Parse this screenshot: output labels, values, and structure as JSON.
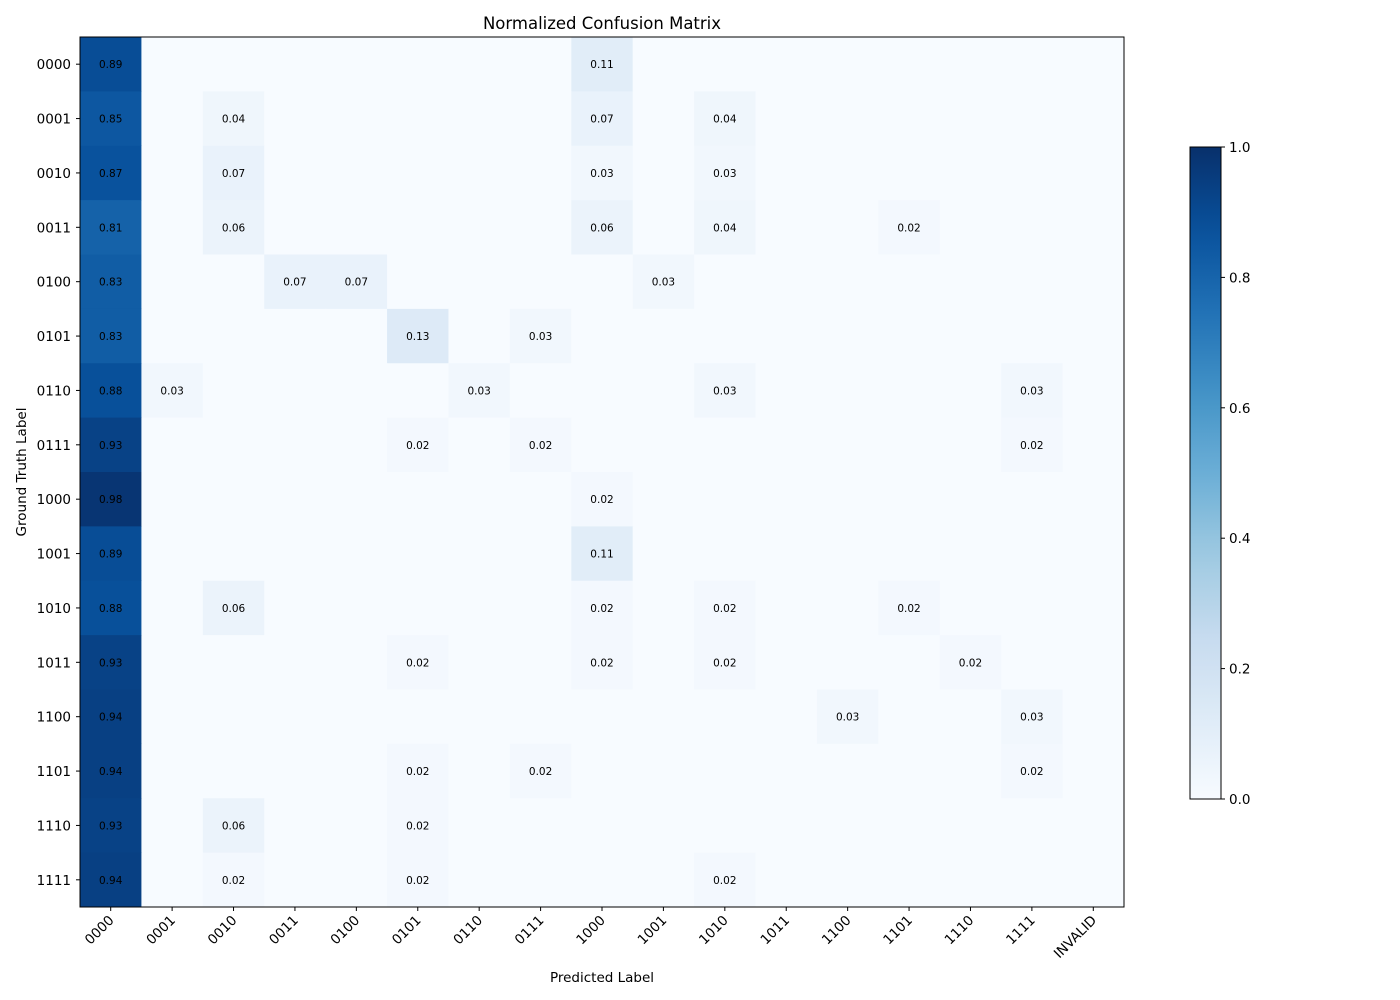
{
  "chart_data": {
    "type": "heatmap",
    "title": "Normalized Confusion Matrix",
    "xlabel": "Predicted Label",
    "ylabel": "Ground Truth Label",
    "x_categories": [
      "0000",
      "0001",
      "0010",
      "0011",
      "0100",
      "0101",
      "0110",
      "0111",
      "1000",
      "1001",
      "1010",
      "1011",
      "1100",
      "1101",
      "1110",
      "1111",
      "INVALID"
    ],
    "y_categories": [
      "0000",
      "0001",
      "0010",
      "0011",
      "0100",
      "0101",
      "0110",
      "0111",
      "1000",
      "1001",
      "1010",
      "1011",
      "1100",
      "1101",
      "1110",
      "1111"
    ],
    "values": [
      [
        0.89,
        0,
        0,
        0,
        0,
        0,
        0,
        0,
        0.11,
        0,
        0,
        0,
        0,
        0,
        0,
        0,
        0
      ],
      [
        0.85,
        0,
        0.04,
        0,
        0,
        0,
        0,
        0,
        0.07,
        0,
        0.04,
        0,
        0,
        0,
        0,
        0,
        0
      ],
      [
        0.87,
        0,
        0.07,
        0,
        0,
        0,
        0,
        0,
        0.03,
        0,
        0.03,
        0,
        0,
        0,
        0,
        0,
        0
      ],
      [
        0.81,
        0,
        0.06,
        0,
        0,
        0,
        0,
        0,
        0.06,
        0,
        0.04,
        0,
        0,
        0.02,
        0,
        0,
        0
      ],
      [
        0.83,
        0,
        0,
        0.07,
        0.07,
        0,
        0,
        0,
        0,
        0.03,
        0,
        0,
        0,
        0,
        0,
        0,
        0
      ],
      [
        0.83,
        0,
        0,
        0,
        0,
        0.13,
        0,
        0.03,
        0,
        0,
        0,
        0,
        0,
        0,
        0,
        0,
        0
      ],
      [
        0.88,
        0.03,
        0,
        0,
        0,
        0,
        0.03,
        0,
        0,
        0,
        0.03,
        0,
        0,
        0,
        0,
        0.03,
        0
      ],
      [
        0.93,
        0,
        0,
        0,
        0,
        0.02,
        0,
        0.02,
        0,
        0,
        0,
        0,
        0,
        0,
        0,
        0.02,
        0
      ],
      [
        0.98,
        0,
        0,
        0,
        0,
        0,
        0,
        0,
        0.02,
        0,
        0,
        0,
        0,
        0,
        0,
        0,
        0
      ],
      [
        0.89,
        0,
        0,
        0,
        0,
        0,
        0,
        0,
        0.11,
        0,
        0,
        0,
        0,
        0,
        0,
        0,
        0
      ],
      [
        0.88,
        0,
        0.06,
        0,
        0,
        0,
        0,
        0,
        0.02,
        0,
        0.02,
        0,
        0,
        0.02,
        0,
        0,
        0
      ],
      [
        0.93,
        0,
        0,
        0,
        0,
        0.02,
        0,
        0,
        0.02,
        0,
        0.02,
        0,
        0,
        0,
        0.02,
        0,
        0
      ],
      [
        0.94,
        0,
        0,
        0,
        0,
        0,
        0,
        0,
        0,
        0,
        0,
        0,
        0.03,
        0,
        0,
        0.03,
        0
      ],
      [
        0.94,
        0,
        0,
        0,
        0,
        0.02,
        0,
        0.02,
        0,
        0,
        0,
        0,
        0,
        0,
        0,
        0.02,
        0
      ],
      [
        0.93,
        0,
        0.06,
        0,
        0,
        0.02,
        0,
        0,
        0,
        0,
        0,
        0,
        0,
        0,
        0,
        0,
        0
      ],
      [
        0.94,
        0,
        0.02,
        0,
        0,
        0.02,
        0,
        0,
        0,
        0,
        0.02,
        0,
        0,
        0,
        0,
        0,
        0
      ]
    ],
    "value_range": [
      0.0,
      1.0
    ],
    "colormap": "Blues",
    "colorbar": {
      "ticks": [
        0.0,
        0.2,
        0.4,
        0.6,
        0.8,
        1.0
      ],
      "tick_labels": [
        "0.0",
        "0.2",
        "0.4",
        "0.6",
        "0.8",
        "1.0"
      ]
    },
    "cell_labels": "shown when value > 0, two decimals"
  }
}
